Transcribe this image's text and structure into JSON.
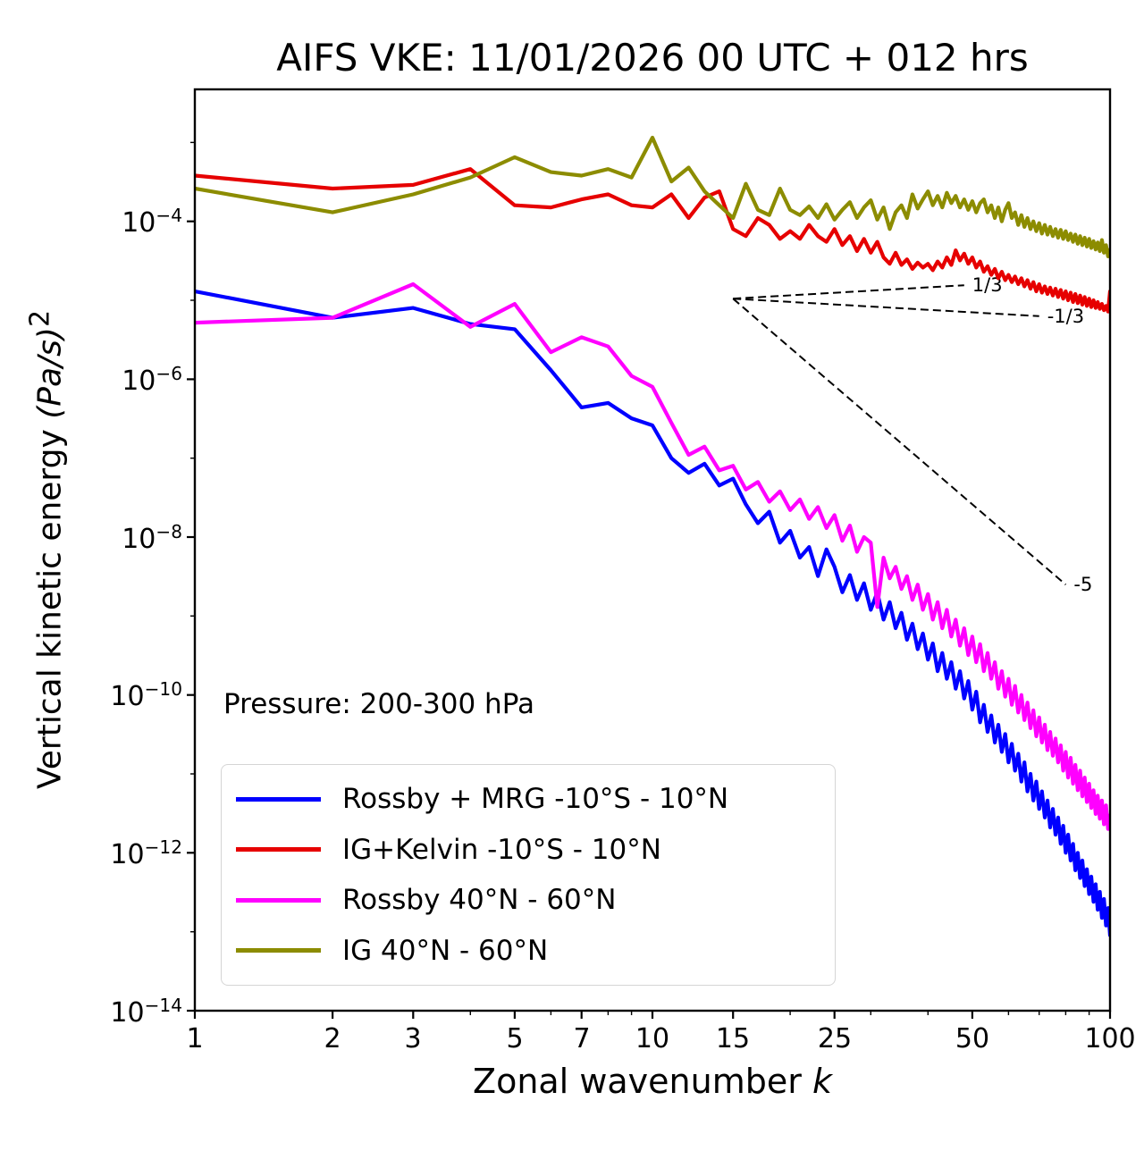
{
  "title": "AIFS VKE: 11/01/2026 00 UTC + 012 hrs",
  "annotation": "Pressure: 200-300 hPa",
  "axes": {
    "xlabel": {
      "prefix": "Zonal wavenumber ",
      "math": "k"
    },
    "ylabel": {
      "prefix": "Vertical kinetic energy ",
      "math": "(Pa/s)",
      "sup": "2"
    }
  },
  "chart_data": {
    "type": "line",
    "xscale": "log",
    "yscale": "log",
    "xlim": [
      1,
      100
    ],
    "ylim": [
      1e-14,
      0.0047
    ],
    "grid": false,
    "legend": {
      "position": "lower left"
    },
    "x_ticks": [
      {
        "value": 1,
        "label": "1"
      },
      {
        "value": 2,
        "label": "2"
      },
      {
        "value": 3,
        "label": "3"
      },
      {
        "value": 5,
        "label": "5"
      },
      {
        "value": 7,
        "label": "7"
      },
      {
        "value": 10,
        "label": "10"
      },
      {
        "value": 15,
        "label": "15"
      },
      {
        "value": 25,
        "label": "25"
      },
      {
        "value": 50,
        "label": "50"
      },
      {
        "value": 100,
        "label": "100"
      }
    ],
    "x_minor_ticks": [
      4,
      6,
      8,
      9,
      20,
      30,
      40,
      60,
      70,
      80,
      90
    ],
    "y_ticks": [
      {
        "value": 0.0001,
        "base": "10",
        "exp": "−4"
      },
      {
        "value": 1e-06,
        "base": "10",
        "exp": "−6"
      },
      {
        "value": 1e-08,
        "base": "10",
        "exp": "−8"
      },
      {
        "value": 1e-10,
        "base": "10",
        "exp": "−10"
      },
      {
        "value": 1e-12,
        "base": "10",
        "exp": "−12"
      },
      {
        "value": 1e-14,
        "base": "10",
        "exp": "−14"
      }
    ],
    "y_minor_ticks": [
      0.001,
      1e-05,
      1e-07,
      1e-09,
      1e-11,
      1e-13
    ],
    "reference_lines": [
      {
        "label": "1/3",
        "x": [
          15,
          48
        ],
        "y": [
          1.05e-05,
          1.55e-05
        ]
      },
      {
        "label": "-1/3",
        "x": [
          15,
          70
        ],
        "y": [
          1.05e-05,
          6.3e-06
        ]
      },
      {
        "label": "-5",
        "x": [
          15,
          80
        ],
        "y": [
          1.05e-05,
          2.5e-09
        ]
      }
    ],
    "x": [
      1,
      2,
      3,
      4,
      5,
      6,
      7,
      8,
      9,
      10,
      11,
      12,
      13,
      14,
      15,
      16,
      17,
      18,
      19,
      20,
      21,
      22,
      23,
      24,
      25,
      26,
      27,
      28,
      29,
      30,
      31,
      32,
      33,
      34,
      35,
      36,
      37,
      38,
      39,
      40,
      41,
      42,
      43,
      44,
      45,
      46,
      47,
      48,
      49,
      50,
      51,
      52,
      53,
      54,
      55,
      56,
      57,
      58,
      59,
      60,
      61,
      62,
      63,
      64,
      65,
      66,
      67,
      68,
      69,
      70,
      71,
      72,
      73,
      74,
      75,
      76,
      77,
      78,
      79,
      80,
      81,
      82,
      83,
      84,
      85,
      86,
      87,
      88,
      89,
      90,
      91,
      92,
      93,
      94,
      95,
      96,
      97,
      98,
      99,
      100
    ],
    "series": [
      {
        "name": "Rossby + MRG -10°S - 10°N",
        "color": "#0000ff",
        "y": [
          1.3e-05,
          6e-06,
          8e-06,
          5e-06,
          4.3e-06,
          1.3e-06,
          4.4e-07,
          5e-07,
          3.2e-07,
          2.6e-07,
          1e-07,
          6.5e-08,
          8.5e-08,
          4.5e-08,
          5.5e-08,
          2.6e-08,
          1.5e-08,
          2.1e-08,
          8.5e-09,
          1.2e-08,
          5.5e-09,
          7.5e-09,
          3.2e-09,
          7e-09,
          4.2e-09,
          2e-09,
          3.3e-09,
          1.6e-09,
          2.6e-09,
          1.2e-09,
          2e-09,
          9e-10,
          1.5e-09,
          7e-10,
          1.1e-09,
          5e-10,
          8e-10,
          3.8e-10,
          6e-10,
          2.8e-10,
          4.5e-10,
          2e-10,
          3.4e-10,
          1.6e-10,
          2.6e-10,
          1.2e-10,
          2e-10,
          9e-11,
          1.5e-10,
          6.5e-11,
          1.1e-10,
          4.5e-11,
          7.5e-11,
          3.4e-11,
          5.5e-11,
          2.5e-11,
          4.2e-11,
          1.9e-11,
          3.2e-11,
          1.4e-11,
          2.4e-11,
          1.1e-11,
          1.8e-11,
          8e-12,
          1.4e-11,
          6e-12,
          1e-11,
          4.6e-12,
          8e-12,
          3.6e-12,
          6e-12,
          2.8e-12,
          4.6e-12,
          2.1e-12,
          3.6e-12,
          1.7e-12,
          2.8e-12,
          1.3e-12,
          2.2e-12,
          1e-12,
          1.7e-12,
          8e-13,
          1.3e-12,
          6e-13,
          1e-12,
          4.8e-13,
          8e-13,
          3.8e-13,
          6.2e-13,
          3e-13,
          5e-13,
          2.4e-13,
          4e-13,
          1.9e-13,
          3.2e-13,
          1.5e-13,
          2.6e-13,
          1.2e-13,
          2e-13,
          9e-14
        ]
      },
      {
        "name": "IG+Kelvin -10°S - 10°N",
        "color": "#e60000",
        "y": [
          0.00038,
          0.00026,
          0.00029,
          0.00046,
          0.00016,
          0.00015,
          0.00019,
          0.00022,
          0.00016,
          0.00015,
          0.00022,
          0.00011,
          0.0002,
          0.00024,
          8e-05,
          6.5e-05,
          0.00011,
          9e-05,
          6e-05,
          7.5e-05,
          6e-05,
          9e-05,
          6.5e-05,
          5.5e-05,
          8e-05,
          5e-05,
          6.5e-05,
          4.2e-05,
          6e-05,
          4e-05,
          5.5e-05,
          3.5e-05,
          2.9e-05,
          4e-05,
          2.8e-05,
          3.3e-05,
          2.5e-05,
          3e-05,
          2.6e-05,
          2.9e-05,
          2.4e-05,
          3.1e-05,
          2.6e-05,
          3.5e-05,
          2.8e-05,
          4.3e-05,
          3.2e-05,
          3.9e-05,
          2.9e-05,
          3.5e-05,
          2.6e-05,
          3.1e-05,
          2.3e-05,
          2.7e-05,
          2.1e-05,
          2.5e-05,
          1.9e-05,
          2.3e-05,
          1.8e-05,
          2.1e-05,
          1.7e-05,
          2e-05,
          1.6e-05,
          1.9e-05,
          1.5e-05,
          1.8e-05,
          1.4e-05,
          1.7e-05,
          1.3e-05,
          1.6e-05,
          1.25e-05,
          1.5e-05,
          1.2e-05,
          1.45e-05,
          1.15e-05,
          1.4e-05,
          1.1e-05,
          1.35e-05,
          1.05e-05,
          1.3e-05,
          1e-05,
          1.25e-05,
          9.5e-06,
          1.2e-05,
          9.2e-06,
          1.15e-05,
          8.8e-06,
          1.1e-05,
          8.5e-06,
          1.05e-05,
          8.2e-06,
          1e-05,
          8e-06,
          9.5e-06,
          7.8e-06,
          9e-06,
          7.5e-06,
          8.5e-06,
          7.2e-06,
          1.3e-05
        ]
      },
      {
        "name": "Rossby 40°N - 60°N",
        "color": "#ff00ff",
        "y": [
          5.2e-06,
          6e-06,
          1.6e-05,
          4.6e-06,
          9e-06,
          2.2e-06,
          3.4e-06,
          2.6e-06,
          1.1e-06,
          8e-07,
          2.8e-07,
          1.1e-07,
          1.4e-07,
          7e-08,
          8e-08,
          4e-08,
          5e-08,
          2.8e-08,
          3.8e-08,
          2.2e-08,
          3e-08,
          1.7e-08,
          2.4e-08,
          1.3e-08,
          1.9e-08,
          9e-09,
          1.4e-08,
          6.5e-09,
          1e-08,
          8.5e-09,
          1.3e-09,
          5.5e-09,
          3e-09,
          4.2e-09,
          2.2e-09,
          3.2e-09,
          1.6e-09,
          2.5e-09,
          1.2e-09,
          1.9e-09,
          9e-10,
          1.5e-09,
          7e-10,
          1.2e-09,
          5.5e-10,
          9e-10,
          4.2e-10,
          7e-10,
          3.2e-10,
          5.5e-10,
          2.6e-10,
          4.4e-10,
          2e-10,
          3.4e-10,
          1.6e-10,
          2.6e-10,
          1.2e-10,
          2e-10,
          9.5e-11,
          1.6e-10,
          7.5e-11,
          1.3e-10,
          6e-11,
          1e-10,
          4.8e-11,
          8e-11,
          3.8e-11,
          6.4e-11,
          3e-11,
          5.2e-11,
          2.5e-11,
          4.2e-11,
          2e-11,
          3.4e-11,
          1.7e-11,
          2.8e-11,
          1.4e-11,
          2.3e-11,
          1.1e-11,
          1.9e-11,
          9e-12,
          1.6e-11,
          7.5e-12,
          1.3e-11,
          6.2e-12,
          1.1e-11,
          5.2e-12,
          9e-12,
          4.4e-12,
          7.5e-12,
          3.7e-12,
          6.2e-12,
          3.1e-12,
          5.3e-12,
          2.7e-12,
          4.6e-12,
          2.3e-12,
          4e-12,
          2e-12,
          3e-12
        ]
      },
      {
        "name": "IG 40°N - 60°N",
        "color": "#8c8c00",
        "y": [
          0.00026,
          0.00013,
          0.00022,
          0.00036,
          0.00065,
          0.00042,
          0.00038,
          0.00046,
          0.00036,
          0.00115,
          0.00032,
          0.00048,
          0.00024,
          0.00016,
          0.00011,
          0.0003,
          0.00014,
          0.00012,
          0.00026,
          0.00014,
          0.00012,
          0.000155,
          0.00011,
          0.000165,
          0.000105,
          0.00014,
          0.000175,
          0.00011,
          0.00015,
          0.000185,
          0.000105,
          0.00015,
          8e-05,
          0.00013,
          0.00016,
          0.00011,
          0.00022,
          0.000145,
          0.00019,
          0.00024,
          0.00016,
          0.00021,
          0.00015,
          0.00023,
          0.00017,
          0.00021,
          0.00015,
          0.00019,
          0.00014,
          0.00018,
          0.00013,
          0.00017,
          0.00019,
          0.00013,
          0.00016,
          0.00011,
          0.00015,
          0.0001,
          0.00014,
          0.00017,
          0.00011,
          0.00013,
          9e-05,
          0.00012,
          8.5e-05,
          0.00011,
          8e-05,
          0.0001,
          7.5e-05,
          9.5e-05,
          7e-05,
          9e-05,
          6.8e-05,
          8.5e-05,
          6.5e-05,
          8e-05,
          6.2e-05,
          7.8e-05,
          6e-05,
          7.5e-05,
          5.8e-05,
          7e-05,
          5.5e-05,
          6.8e-05,
          5.2e-05,
          6.5e-05,
          5e-05,
          6.2e-05,
          4.8e-05,
          6e-05,
          4.6e-05,
          5.6e-05,
          4.4e-05,
          5.4e-05,
          4.2e-05,
          5.8e-05,
          4e-05,
          5e-05,
          3.6e-05,
          4.4e-05
        ]
      }
    ]
  }
}
